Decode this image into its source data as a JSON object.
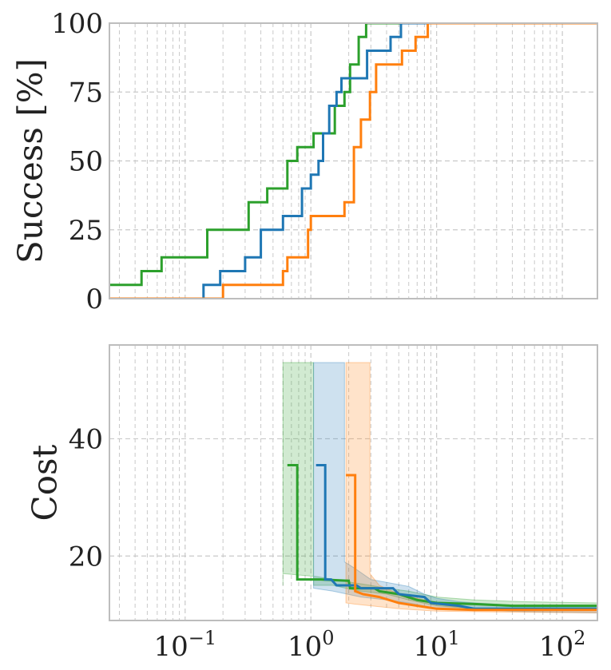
{
  "chart_data": [
    {
      "type": "line",
      "x_scale": "log",
      "xlim": [
        0.025,
        190
      ],
      "ylim": [
        0,
        100
      ],
      "ylabel": "Success [%]",
      "xlabel": "",
      "yticks": [
        0,
        25,
        50,
        75,
        100
      ],
      "grid": true,
      "series": [
        {
          "color": "#2ca02c",
          "steps": [
            [
              0.025,
              5
            ],
            [
              0.045,
              5
            ],
            [
              0.045,
              10
            ],
            [
              0.065,
              10
            ],
            [
              0.065,
              15
            ],
            [
              0.15,
              15
            ],
            [
              0.15,
              25
            ],
            [
              0.32,
              25
            ],
            [
              0.32,
              35
            ],
            [
              0.45,
              35
            ],
            [
              0.45,
              40
            ],
            [
              0.65,
              40
            ],
            [
              0.65,
              50
            ],
            [
              0.78,
              50
            ],
            [
              0.78,
              55
            ],
            [
              1.05,
              55
            ],
            [
              1.05,
              60
            ],
            [
              1.55,
              60
            ],
            [
              1.55,
              70
            ],
            [
              1.85,
              70
            ],
            [
              1.85,
              75
            ],
            [
              2.05,
              75
            ],
            [
              2.05,
              85
            ],
            [
              2.4,
              85
            ],
            [
              2.4,
              95
            ],
            [
              2.75,
              95
            ],
            [
              2.75,
              100
            ],
            [
              190,
              100
            ]
          ]
        },
        {
          "color": "#1f77b4",
          "steps": [
            [
              0.14,
              0
            ],
            [
              0.14,
              5
            ],
            [
              0.19,
              5
            ],
            [
              0.19,
              10
            ],
            [
              0.3,
              10
            ],
            [
              0.3,
              15
            ],
            [
              0.4,
              15
            ],
            [
              0.4,
              25
            ],
            [
              0.6,
              25
            ],
            [
              0.6,
              30
            ],
            [
              0.85,
              30
            ],
            [
              0.85,
              40
            ],
            [
              1.0,
              40
            ],
            [
              1.0,
              45
            ],
            [
              1.15,
              45
            ],
            [
              1.15,
              50
            ],
            [
              1.25,
              50
            ],
            [
              1.25,
              60
            ],
            [
              1.4,
              60
            ],
            [
              1.4,
              70
            ],
            [
              1.6,
              70
            ],
            [
              1.6,
              75
            ],
            [
              1.75,
              75
            ],
            [
              1.75,
              80
            ],
            [
              2.8,
              80
            ],
            [
              2.8,
              90
            ],
            [
              4.3,
              90
            ],
            [
              4.3,
              95
            ],
            [
              5.2,
              95
            ],
            [
              5.2,
              100
            ],
            [
              190,
              100
            ]
          ]
        },
        {
          "color": "#ff7f0e",
          "steps": [
            [
              0.025,
              0
            ],
            [
              0.2,
              0
            ],
            [
              0.2,
              5
            ],
            [
              0.6,
              5
            ],
            [
              0.6,
              10
            ],
            [
              0.65,
              10
            ],
            [
              0.65,
              15
            ],
            [
              0.95,
              15
            ],
            [
              0.95,
              25
            ],
            [
              1.0,
              25
            ],
            [
              1.0,
              30
            ],
            [
              1.85,
              30
            ],
            [
              1.85,
              35
            ],
            [
              2.2,
              35
            ],
            [
              2.2,
              55
            ],
            [
              2.5,
              55
            ],
            [
              2.5,
              65
            ],
            [
              2.95,
              65
            ],
            [
              2.95,
              75
            ],
            [
              3.3,
              75
            ],
            [
              3.3,
              85
            ],
            [
              5.3,
              85
            ],
            [
              5.3,
              90
            ],
            [
              6.8,
              90
            ],
            [
              6.8,
              95
            ],
            [
              8.5,
              95
            ],
            [
              8.5,
              100
            ],
            [
              190,
              100
            ]
          ]
        }
      ]
    },
    {
      "type": "line",
      "x_scale": "log",
      "xlim": [
        0.025,
        190
      ],
      "ylim": [
        9,
        56
      ],
      "ylabel": "Cost",
      "xlabel": "",
      "yticks": [
        20,
        40
      ],
      "xticks": [
        0.1,
        1,
        10,
        100
      ],
      "xtick_labels": [
        {
          "base": "10",
          "exp": "−1"
        },
        {
          "base": "10",
          "exp": "0"
        },
        {
          "base": "10",
          "exp": "1"
        },
        {
          "base": "10",
          "exp": "2"
        }
      ],
      "grid": true,
      "series": [
        {
          "color": "#2ca02c",
          "median": [
            [
              0.65,
              35.5
            ],
            [
              0.78,
              35.5
            ],
            [
              0.78,
              16
            ],
            [
              1.2,
              16
            ],
            [
              1.2,
              16
            ],
            [
              1.9,
              15.8
            ],
            [
              2.0,
              15.8
            ],
            [
              2.05,
              14.5
            ],
            [
              3.2,
              14.5
            ],
            [
              3.5,
              14
            ],
            [
              5,
              13.5
            ],
            [
              7,
              12.5
            ],
            [
              10,
              12
            ],
            [
              20,
              11.8
            ],
            [
              40,
              11.5
            ],
            [
              190,
              11.5
            ]
          ],
          "band": [
            [
              [
                0.6,
                15
              ],
              [
                0.6,
                53
              ],
              [
                1.05,
                53
              ],
              [
                1.05,
                15
              ],
              [
                1.5,
                15
              ],
              [
                1.9,
                14.5
              ],
              [
                2.5,
                14
              ],
              [
                4,
                13.5
              ],
              [
                6,
                12.5
              ],
              [
                10,
                11.5
              ],
              [
                20,
                11
              ],
              [
                50,
                11
              ],
              [
                190,
                11
              ]
            ],
            [
              [
                190,
                12
              ],
              [
                50,
                12.2
              ],
              [
                20,
                12.5
              ],
              [
                10,
                13
              ],
              [
                6,
                14
              ],
              [
                4,
                14.5
              ],
              [
                3,
                15
              ],
              [
                2.1,
                15.5
              ],
              [
                1.1,
                16.5
              ],
              [
                0.6,
                17
              ]
            ]
          ]
        },
        {
          "color": "#1f77b4",
          "median": [
            [
              1.1,
              35.5
            ],
            [
              1.3,
              35.5
            ],
            [
              1.3,
              16
            ],
            [
              1.45,
              16
            ],
            [
              1.6,
              15
            ],
            [
              2.3,
              15
            ],
            [
              2.5,
              14.5
            ],
            [
              4.5,
              14.5
            ],
            [
              5,
              13.5
            ],
            [
              8,
              13
            ],
            [
              9,
              12
            ],
            [
              15,
              11.5
            ],
            [
              20,
              11
            ],
            [
              190,
              11
            ]
          ],
          "band": [
            [
              [
                1.05,
                15
              ],
              [
                1.05,
                53
              ],
              [
                1.85,
                53
              ],
              [
                1.85,
                19
              ],
              [
                2.2,
                18
              ],
              [
                3,
                16
              ],
              [
                4,
                15.5
              ],
              [
                6,
                14.8
              ],
              [
                8,
                13.5
              ],
              [
                10,
                12.8
              ],
              [
                15,
                12.2
              ],
              [
                20,
                12
              ],
              [
                50,
                11.5
              ],
              [
                190,
                11.5
              ]
            ],
            [
              [
                190,
                10.3
              ],
              [
                50,
                10.5
              ],
              [
                20,
                10.8
              ],
              [
                10,
                11
              ],
              [
                6,
                12
              ],
              [
                4,
                12.5
              ],
              [
                2.5,
                13
              ],
              [
                1.5,
                14
              ],
              [
                1.05,
                14.5
              ]
            ]
          ]
        },
        {
          "color": "#ff7f0e",
          "median": [
            [
              1.9,
              33.8
            ],
            [
              2.25,
              33.8
            ],
            [
              2.25,
              14
            ],
            [
              2.6,
              13.5
            ],
            [
              3.5,
              13
            ],
            [
              5,
              12
            ],
            [
              10,
              11
            ],
            [
              20,
              10.8
            ],
            [
              190,
              10.8
            ]
          ],
          "band": [
            [
              [
                1.9,
                12
              ],
              [
                1.9,
                53
              ],
              [
                2.95,
                53
              ],
              [
                2.95,
                17
              ],
              [
                3.5,
                15
              ],
              [
                5,
                13.5
              ],
              [
                8,
                12.5
              ],
              [
                12,
                11.5
              ],
              [
                20,
                11
              ],
              [
                50,
                10.8
              ],
              [
                190,
                10.8
              ]
            ],
            [
              [
                190,
                10.3
              ],
              [
                50,
                10.4
              ],
              [
                20,
                10.5
              ],
              [
                10,
                10.6
              ],
              [
                5,
                11
              ],
              [
                3,
                11.5
              ],
              [
                2.2,
                11.8
              ],
              [
                1.9,
                12
              ]
            ]
          ]
        }
      ]
    }
  ]
}
